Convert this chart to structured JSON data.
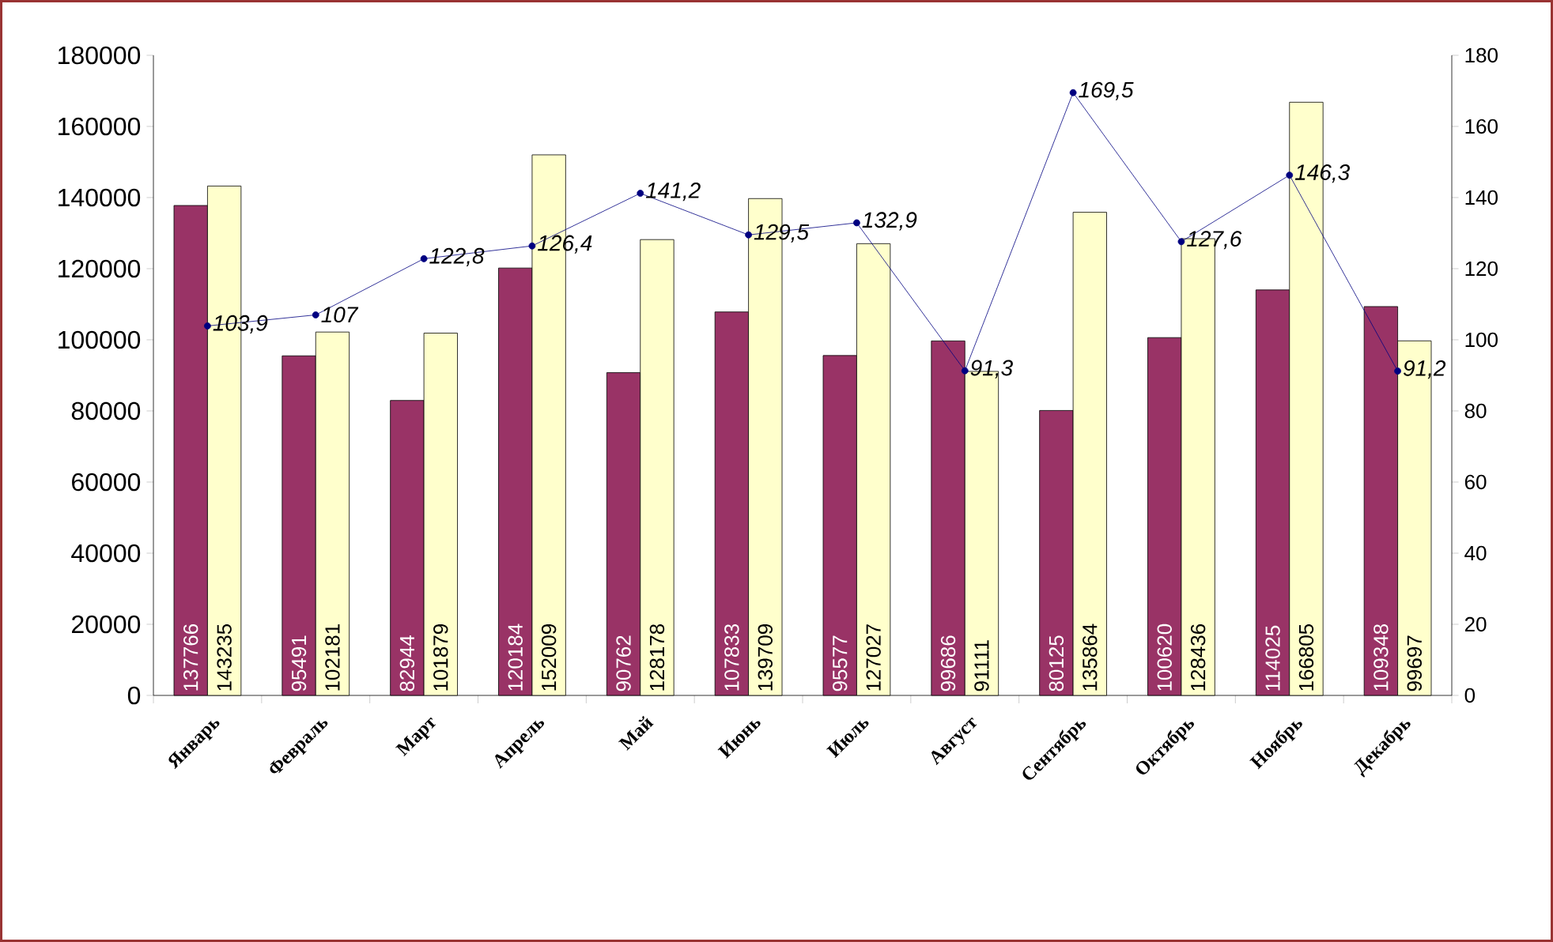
{
  "chart_data": {
    "type": "bar",
    "categories": [
      "Январь",
      "Февраль",
      "Март",
      "Апрель",
      "Май",
      "Июнь",
      "Июль",
      "Август",
      "Сентябрь",
      "Октябрь",
      "Ноябрь",
      "Декабрь"
    ],
    "series": [
      {
        "color": "#993366",
        "values": [
          137766,
          95491,
          82944,
          120184,
          90762,
          107833,
          95577,
          99686,
          80125,
          100620,
          114025,
          109348
        ]
      },
      {
        "color": "#ffffcc",
        "values": [
          143235,
          102181,
          101879,
          152009,
          128178,
          139709,
          127027,
          91111,
          135864,
          128436,
          166805,
          99697
        ]
      },
      {
        "type": "line",
        "axis": "y2",
        "color": "#000080",
        "values": [
          103.9,
          107,
          122.8,
          126.4,
          141.2,
          129.5,
          132.9,
          91.3,
          169.5,
          127.6,
          146.3,
          91.2
        ],
        "value_labels": [
          "103,9",
          "107",
          "122,8",
          "126,4",
          "141,2",
          "129,5",
          "132,9",
          "91,3",
          "169,5",
          "127,6",
          "146,3",
          "91,2"
        ]
      }
    ],
    "ylim": [
      0,
      180000
    ],
    "yticks": [
      0,
      20000,
      40000,
      60000,
      80000,
      100000,
      120000,
      140000,
      160000,
      180000
    ],
    "y2lim": [
      0,
      180
    ],
    "y2ticks": [
      0,
      20,
      40,
      60,
      80,
      100,
      120,
      140,
      160,
      180
    ],
    "data_labels": true,
    "marker": "circle"
  }
}
